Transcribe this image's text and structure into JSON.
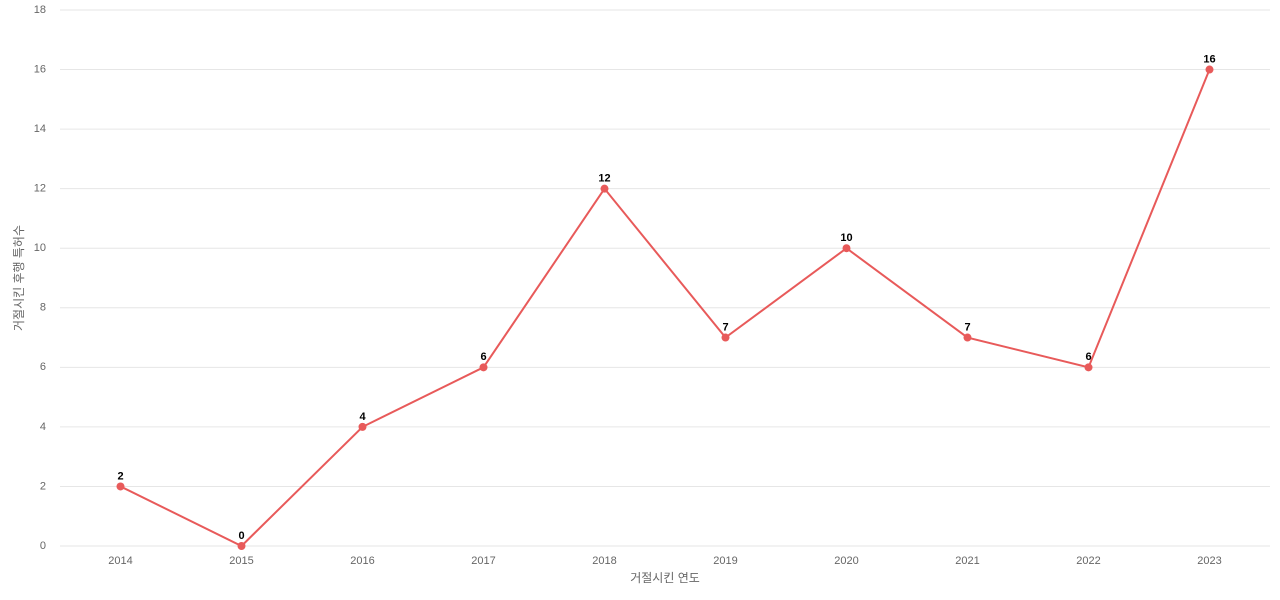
{
  "chart_data": {
    "type": "line",
    "x_label": "거절시킨 연도",
    "y_label": "거절시킨 후행 특허수",
    "categories": [
      "2014",
      "2015",
      "2016",
      "2017",
      "2018",
      "2019",
      "2020",
      "2021",
      "2022",
      "2023"
    ],
    "values": [
      2,
      0,
      4,
      6,
      12,
      7,
      10,
      7,
      6,
      16
    ],
    "color": "#e85a5a",
    "ylim": [
      0,
      18
    ],
    "yticks": [
      0,
      2,
      4,
      6,
      8,
      10,
      12,
      14,
      16,
      18
    ],
    "grid": true,
    "data_labels": true
  }
}
